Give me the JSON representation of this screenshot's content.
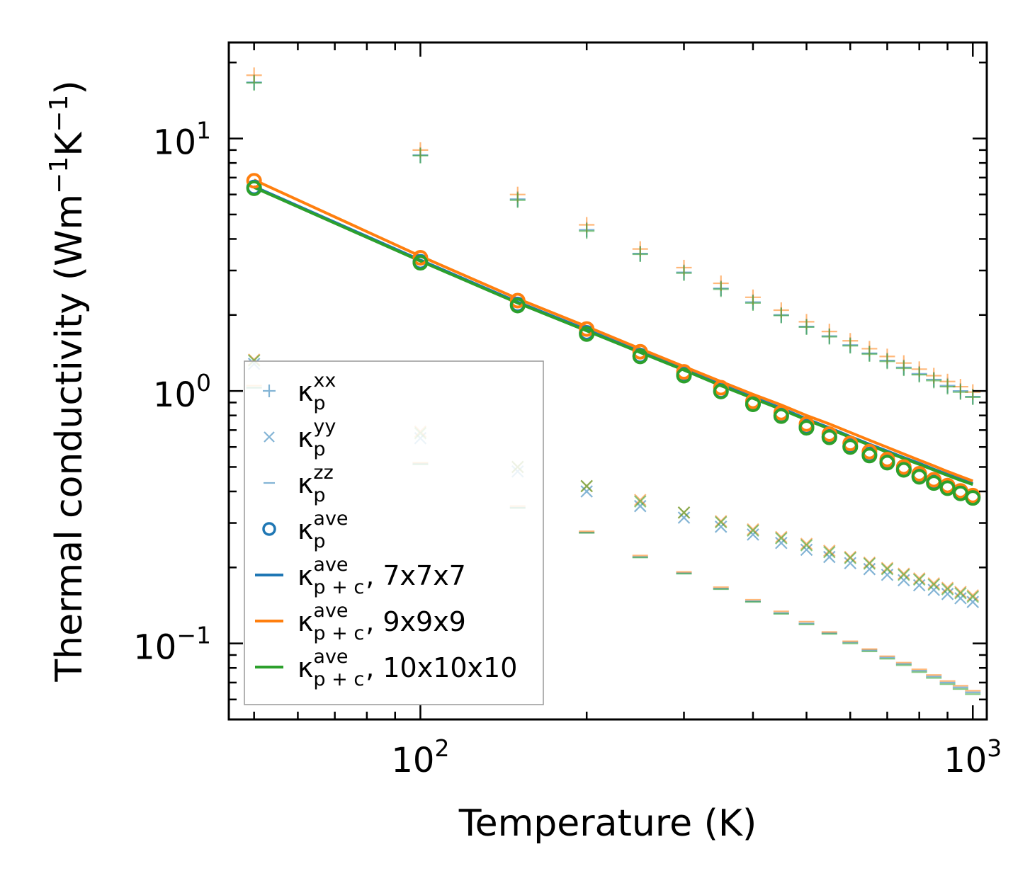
{
  "chart_data": {
    "type": "scatter",
    "title": "",
    "xlabel": "Temperature (K)",
    "ylabel": {
      "main": "Thermal conductivity (Wm",
      "sup1": "−1",
      "mid": "K",
      "sup2": "−1",
      "end": ")"
    },
    "xscale": "log",
    "yscale": "log",
    "xlim": [
      45,
      1060
    ],
    "ylim": [
      0.05,
      24
    ],
    "x_ticks": [
      {
        "value": 100,
        "base": "10",
        "exp": "2"
      },
      {
        "value": 1000,
        "base": "10",
        "exp": "3"
      }
    ],
    "y_ticks": [
      {
        "value": 0.1,
        "base": "10",
        "exp": "−1"
      },
      {
        "value": 1,
        "base": "10",
        "exp": "0"
      },
      {
        "value": 10,
        "base": "10",
        "exp": "1"
      }
    ],
    "grid": false,
    "legend_position": "lower-left",
    "colors": {
      "blue": "#1f77b4",
      "orange": "#ff7f0e",
      "green": "#2ca02c"
    },
    "x": [
      50,
      100,
      150,
      200,
      250,
      300,
      350,
      400,
      450,
      500,
      550,
      600,
      650,
      700,
      750,
      800,
      850,
      900,
      950,
      1000
    ],
    "series": [
      {
        "name": "kxx 7x7x7",
        "color": "blue",
        "kind": "kxx",
        "values": [
          16.7,
          8.6,
          5.75,
          4.35,
          3.5,
          2.95,
          2.55,
          2.25,
          2.0,
          1.8,
          1.65,
          1.52,
          1.41,
          1.32,
          1.24,
          1.17,
          1.11,
          1.05,
          1.0,
          0.95
        ]
      },
      {
        "name": "kxx 9x9x9",
        "color": "orange",
        "kind": "kxx",
        "values": [
          17.8,
          9.0,
          6.0,
          4.55,
          3.65,
          3.08,
          2.67,
          2.35,
          2.09,
          1.88,
          1.72,
          1.58,
          1.47,
          1.37,
          1.29,
          1.22,
          1.15,
          1.09,
          1.04,
          0.99
        ]
      },
      {
        "name": "kxx 10x10x10",
        "color": "green",
        "kind": "kxx",
        "values": [
          16.6,
          8.55,
          5.7,
          4.3,
          3.48,
          2.93,
          2.53,
          2.23,
          1.99,
          1.79,
          1.64,
          1.51,
          1.4,
          1.31,
          1.23,
          1.16,
          1.1,
          1.04,
          0.99,
          0.945
        ]
      },
      {
        "name": "kyy 7x7x7",
        "color": "blue",
        "kind": "kyy",
        "values": [
          1.28,
          0.65,
          0.48,
          0.4,
          0.35,
          0.315,
          0.29,
          0.27,
          0.25,
          0.235,
          0.22,
          0.208,
          0.197,
          0.187,
          0.178,
          0.17,
          0.163,
          0.157,
          0.151,
          0.146
        ]
      },
      {
        "name": "kyy 9x9x9",
        "color": "orange",
        "kind": "kyy",
        "values": [
          1.33,
          0.69,
          0.5,
          0.42,
          0.37,
          0.33,
          0.305,
          0.283,
          0.264,
          0.248,
          0.233,
          0.22,
          0.209,
          0.199,
          0.189,
          0.181,
          0.173,
          0.166,
          0.16,
          0.155
        ]
      },
      {
        "name": "kyy 10x10x10",
        "color": "green",
        "kind": "kyy",
        "values": [
          1.32,
          0.68,
          0.5,
          0.42,
          0.365,
          0.33,
          0.302,
          0.28,
          0.261,
          0.245,
          0.23,
          0.218,
          0.207,
          0.197,
          0.187,
          0.179,
          0.171,
          0.164,
          0.158,
          0.153
        ]
      },
      {
        "name": "kzz 7x7x7",
        "color": "blue",
        "kind": "kzz",
        "values": [
          1.03,
          0.515,
          0.345,
          0.275,
          0.22,
          0.19,
          0.165,
          0.147,
          0.132,
          0.12,
          0.11,
          0.101,
          0.094,
          0.088,
          0.083,
          0.078,
          0.074,
          0.07,
          0.067,
          0.064
        ]
      },
      {
        "name": "kzz 9x9x9",
        "color": "orange",
        "kind": "kzz",
        "values": [
          1.05,
          0.52,
          0.35,
          0.278,
          0.223,
          0.192,
          0.167,
          0.149,
          0.134,
          0.122,
          0.111,
          0.102,
          0.095,
          0.089,
          0.084,
          0.079,
          0.075,
          0.071,
          0.068,
          0.065
        ]
      },
      {
        "name": "kzz 10x10x10",
        "color": "green",
        "kind": "kzz",
        "values": [
          1.03,
          0.512,
          0.344,
          0.274,
          0.219,
          0.189,
          0.164,
          0.146,
          0.131,
          0.119,
          0.109,
          0.1,
          0.093,
          0.087,
          0.082,
          0.077,
          0.073,
          0.069,
          0.066,
          0.063
        ]
      },
      {
        "name": "kave 7x7x7",
        "color": "blue",
        "kind": "kave",
        "values": [
          6.4,
          3.25,
          2.2,
          1.7,
          1.38,
          1.16,
          1.0,
          0.89,
          0.8,
          0.72,
          0.66,
          0.605,
          0.56,
          0.525,
          0.49,
          0.46,
          0.435,
          0.415,
          0.395,
          0.38
        ]
      },
      {
        "name": "kave 9x9x9",
        "color": "orange",
        "kind": "kave",
        "values": [
          6.8,
          3.37,
          2.28,
          1.76,
          1.43,
          1.19,
          1.03,
          0.91,
          0.82,
          0.74,
          0.675,
          0.62,
          0.575,
          0.535,
          0.5,
          0.47,
          0.445,
          0.422,
          0.402,
          0.385
        ]
      },
      {
        "name": "kave 10x10x10",
        "color": "green",
        "kind": "kave",
        "values": [
          6.35,
          3.22,
          2.18,
          1.68,
          1.37,
          1.15,
          0.995,
          0.885,
          0.795,
          0.715,
          0.655,
          0.6,
          0.555,
          0.52,
          0.487,
          0.457,
          0.432,
          0.412,
          0.393,
          0.377
        ]
      },
      {
        "name": "kp+c ave 7x7x7",
        "color": "blue",
        "kind": "line",
        "values": [
          6.45,
          3.3,
          2.25,
          1.75,
          1.43,
          1.22,
          1.06,
          0.945,
          0.855,
          0.775,
          0.715,
          0.66,
          0.615,
          0.578,
          0.545,
          0.517,
          0.49,
          0.467,
          0.447,
          0.43
        ]
      },
      {
        "name": "kp+c ave 9x9x9",
        "color": "orange",
        "kind": "line",
        "values": [
          6.85,
          3.42,
          2.32,
          1.8,
          1.47,
          1.25,
          1.09,
          0.97,
          0.88,
          0.8,
          0.74,
          0.685,
          0.638,
          0.598,
          0.563,
          0.532,
          0.505,
          0.48,
          0.459,
          0.44
        ]
      },
      {
        "name": "kp+c ave 10x10x10",
        "color": "green",
        "kind": "line",
        "values": [
          6.4,
          3.27,
          2.23,
          1.73,
          1.42,
          1.21,
          1.05,
          0.935,
          0.845,
          0.768,
          0.708,
          0.655,
          0.61,
          0.572,
          0.54,
          0.512,
          0.486,
          0.463,
          0.443,
          0.426
        ]
      }
    ],
    "legend": [
      {
        "kind": "kxx",
        "color": "blue",
        "base": "κ",
        "sub": "p",
        "sup": "xx",
        "suffix": ""
      },
      {
        "kind": "kyy",
        "color": "blue",
        "base": "κ",
        "sub": "p",
        "sup": "yy",
        "suffix": ""
      },
      {
        "kind": "kzz",
        "color": "blue",
        "base": "κ",
        "sub": "p",
        "sup": "zz",
        "suffix": ""
      },
      {
        "kind": "kave",
        "color": "blue",
        "base": "κ",
        "sub": "p",
        "sup": "ave",
        "suffix": ""
      },
      {
        "kind": "line",
        "color": "blue",
        "base": "κ",
        "sub": "p + c",
        "sup": "ave",
        "suffix": ", 7x7x7"
      },
      {
        "kind": "line",
        "color": "orange",
        "base": "κ",
        "sub": "p + c",
        "sup": "ave",
        "suffix": ", 9x9x9"
      },
      {
        "kind": "line",
        "color": "green",
        "base": "κ",
        "sub": "p + c",
        "sup": "ave",
        "suffix": ", 10x10x10"
      }
    ]
  }
}
